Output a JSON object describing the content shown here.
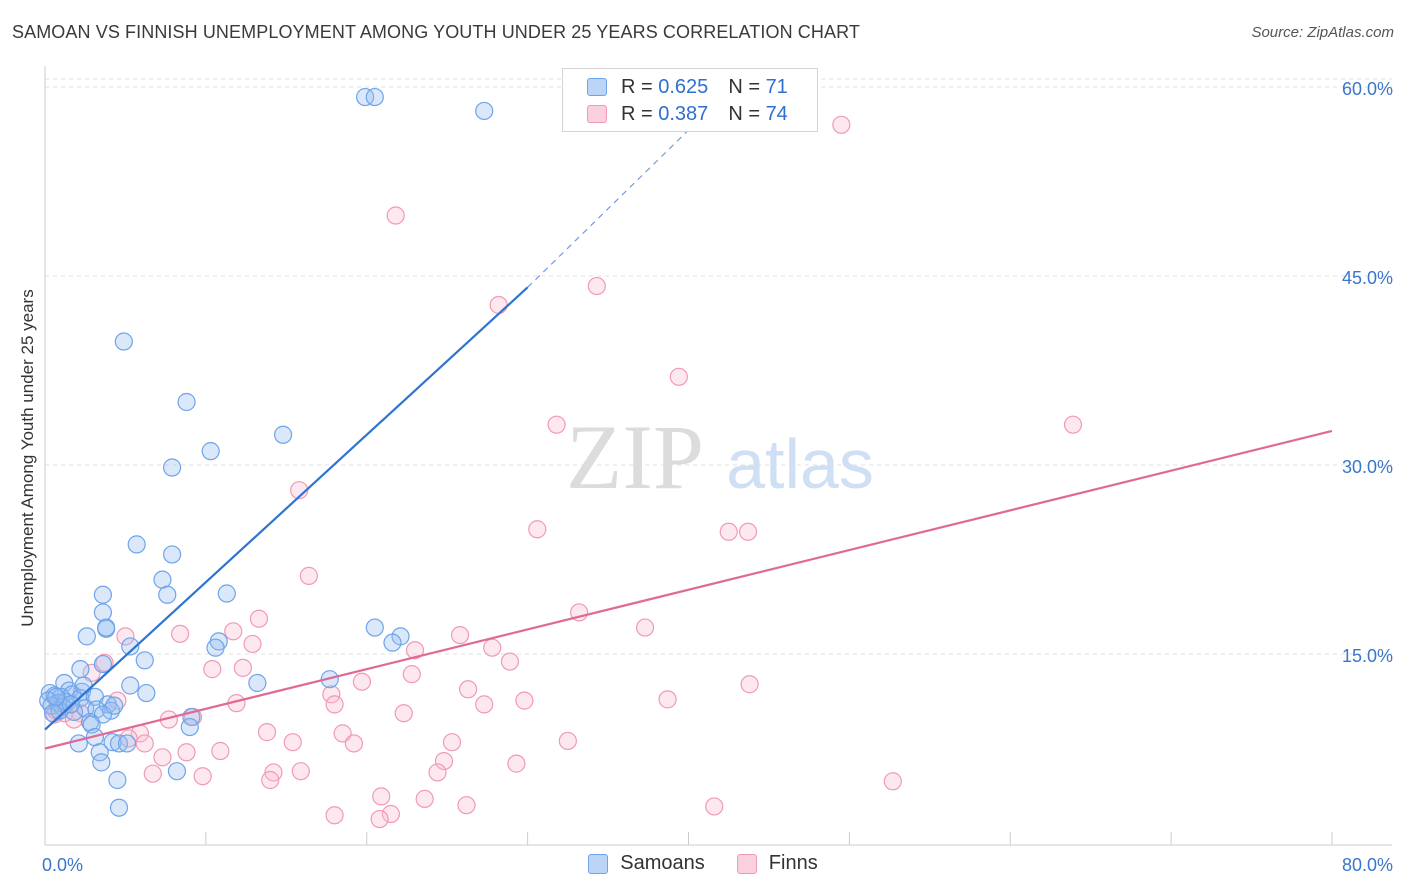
{
  "title": "SAMOAN VS FINNISH UNEMPLOYMENT AMONG YOUTH UNDER 25 YEARS CORRELATION CHART",
  "source": "Source: ZipAtlas.com",
  "watermark": {
    "zip": "ZIP",
    "atlas": "atlas"
  },
  "legend": {
    "samoans": {
      "r_label": "R = ",
      "r": "0.625",
      "n_label": "N = ",
      "n": "71"
    },
    "finns": {
      "r_label": "R = ",
      "r": "0.387",
      "n_label": "N = ",
      "n": "74"
    }
  },
  "bottom_legend": {
    "samoans": "Samoans",
    "finns": "Finns"
  },
  "chart_data": {
    "type": "scatter",
    "title": "SAMOAN VS FINNISH UNEMPLOYMENT AMONG YOUTH UNDER 25 YEARS CORRELATION CHART",
    "xlabel": "",
    "ylabel": "Unemployment Among Youth under 25 years",
    "xlim": [
      0,
      80
    ],
    "ylim": [
      0,
      63
    ],
    "x_tick_labels": [
      {
        "value": 0,
        "label": "0.0%"
      },
      {
        "value": 80,
        "label": "80.0%"
      }
    ],
    "y_tick_labels": [
      {
        "value": 15,
        "label": "15.0%"
      },
      {
        "value": 30,
        "label": "30.0%"
      },
      {
        "value": 45,
        "label": "45.0%"
      },
      {
        "value": 60,
        "label": "60.0%"
      }
    ],
    "colors": {
      "samoans": "#6ea4ea",
      "finns": "#f09ab6",
      "samoans_line": "#2f74d0",
      "finns_line": "#e06a95"
    },
    "series": [
      {
        "name": "Samoans",
        "trend": {
          "x": [
            0,
            30
          ],
          "y": [
            9.0,
            44.1
          ],
          "dashed_to": [
            42.5,
            59.7
          ]
        },
        "points": [
          [
            19.9,
            59.2
          ],
          [
            20.5,
            59.2
          ],
          [
            27.3,
            58.1
          ],
          [
            4.9,
            39.8
          ],
          [
            8.8,
            35.0
          ],
          [
            14.8,
            32.4
          ],
          [
            10.3,
            31.1
          ],
          [
            7.9,
            29.8
          ],
          [
            5.7,
            23.7
          ],
          [
            7.9,
            22.9
          ],
          [
            7.3,
            20.9
          ],
          [
            3.6,
            19.7
          ],
          [
            7.6,
            19.7
          ],
          [
            11.3,
            19.8
          ],
          [
            3.6,
            18.3
          ],
          [
            3.8,
            17.0
          ],
          [
            3.8,
            17.1
          ],
          [
            20.5,
            17.1
          ],
          [
            2.6,
            16.4
          ],
          [
            22.1,
            16.4
          ],
          [
            10.8,
            16.0
          ],
          [
            21.6,
            15.9
          ],
          [
            5.3,
            15.6
          ],
          [
            10.6,
            15.5
          ],
          [
            6.2,
            14.5
          ],
          [
            3.6,
            14.2
          ],
          [
            2.2,
            13.8
          ],
          [
            17.7,
            13.0
          ],
          [
            1.2,
            12.7
          ],
          [
            13.2,
            12.7
          ],
          [
            5.3,
            12.5
          ],
          [
            2.3,
            12.0
          ],
          [
            1.5,
            12.1
          ],
          [
            6.3,
            11.9
          ],
          [
            0.3,
            11.9
          ],
          [
            0.6,
            11.7
          ],
          [
            1.0,
            11.6
          ],
          [
            1.7,
            11.8
          ],
          [
            2.2,
            11.5
          ],
          [
            3.1,
            11.6
          ],
          [
            0.2,
            11.3
          ],
          [
            0.8,
            11.1
          ],
          [
            1.3,
            11.2
          ],
          [
            3.9,
            11.0
          ],
          [
            0.4,
            10.9
          ],
          [
            1.1,
            10.8
          ],
          [
            2.5,
            10.7
          ],
          [
            3.2,
            10.6
          ],
          [
            0.9,
            10.5
          ],
          [
            4.1,
            10.5
          ],
          [
            1.8,
            10.4
          ],
          [
            0.5,
            10.3
          ],
          [
            3.6,
            10.2
          ],
          [
            9.1,
            10.0
          ],
          [
            2.8,
            9.6
          ],
          [
            2.9,
            9.4
          ],
          [
            9.0,
            9.2
          ],
          [
            3.1,
            8.4
          ],
          [
            2.1,
            7.9
          ],
          [
            4.2,
            8.0
          ],
          [
            4.6,
            7.9
          ],
          [
            5.1,
            7.9
          ],
          [
            3.4,
            7.2
          ],
          [
            3.5,
            6.4
          ],
          [
            8.2,
            5.7
          ],
          [
            4.5,
            5.0
          ],
          [
            4.6,
            2.8
          ],
          [
            2.4,
            12.5
          ],
          [
            1.6,
            11.0
          ],
          [
            0.7,
            11.6
          ],
          [
            4.3,
            10.9
          ]
        ]
      },
      {
        "name": "Finns",
        "trend": {
          "x": [
            0,
            80
          ],
          "y": [
            7.5,
            32.7
          ]
        },
        "points": [
          [
            49.5,
            57.0
          ],
          [
            21.8,
            49.8
          ],
          [
            34.3,
            44.2
          ],
          [
            28.2,
            42.7
          ],
          [
            39.4,
            37.0
          ],
          [
            63.9,
            33.2
          ],
          [
            31.8,
            33.2
          ],
          [
            15.8,
            28.0
          ],
          [
            30.6,
            24.9
          ],
          [
            42.5,
            24.7
          ],
          [
            16.4,
            21.2
          ],
          [
            33.2,
            18.3
          ],
          [
            13.3,
            17.8
          ],
          [
            37.3,
            17.1
          ],
          [
            11.7,
            16.8
          ],
          [
            8.4,
            16.6
          ],
          [
            25.8,
            16.5
          ],
          [
            5.0,
            16.4
          ],
          [
            12.9,
            15.8
          ],
          [
            27.8,
            15.5
          ],
          [
            23.0,
            15.3
          ],
          [
            28.9,
            14.4
          ],
          [
            3.7,
            14.3
          ],
          [
            12.3,
            13.9
          ],
          [
            10.4,
            13.8
          ],
          [
            2.9,
            13.5
          ],
          [
            22.8,
            13.4
          ],
          [
            19.7,
            12.8
          ],
          [
            43.8,
            12.6
          ],
          [
            26.3,
            12.2
          ],
          [
            17.8,
            11.8
          ],
          [
            38.7,
            11.4
          ],
          [
            29.8,
            11.3
          ],
          [
            4.5,
            11.3
          ],
          [
            11.9,
            11.1
          ],
          [
            18.0,
            11.0
          ],
          [
            27.3,
            11.0
          ],
          [
            22.3,
            10.3
          ],
          [
            1.2,
            10.3
          ],
          [
            2.2,
            10.3
          ],
          [
            0.6,
            10.2
          ],
          [
            9.2,
            10.0
          ],
          [
            7.7,
            9.8
          ],
          [
            1.8,
            9.8
          ],
          [
            0.7,
            10.5
          ],
          [
            13.8,
            8.8
          ],
          [
            18.5,
            8.7
          ],
          [
            5.9,
            8.7
          ],
          [
            5.2,
            8.3
          ],
          [
            32.5,
            8.1
          ],
          [
            25.3,
            8.0
          ],
          [
            15.4,
            8.0
          ],
          [
            6.2,
            7.9
          ],
          [
            19.2,
            7.9
          ],
          [
            8.8,
            7.2
          ],
          [
            10.9,
            7.3
          ],
          [
            7.3,
            6.8
          ],
          [
            24.8,
            6.5
          ],
          [
            29.3,
            6.3
          ],
          [
            15.9,
            5.7
          ],
          [
            14.2,
            5.6
          ],
          [
            24.4,
            5.6
          ],
          [
            6.7,
            5.5
          ],
          [
            9.8,
            5.3
          ],
          [
            14.0,
            5.0
          ],
          [
            52.7,
            4.9
          ],
          [
            20.9,
            3.7
          ],
          [
            23.6,
            3.5
          ],
          [
            26.2,
            3.0
          ],
          [
            41.6,
            2.9
          ],
          [
            18.0,
            2.2
          ],
          [
            21.5,
            2.3
          ],
          [
            20.8,
            1.9
          ],
          [
            43.7,
            24.7
          ]
        ]
      }
    ]
  }
}
